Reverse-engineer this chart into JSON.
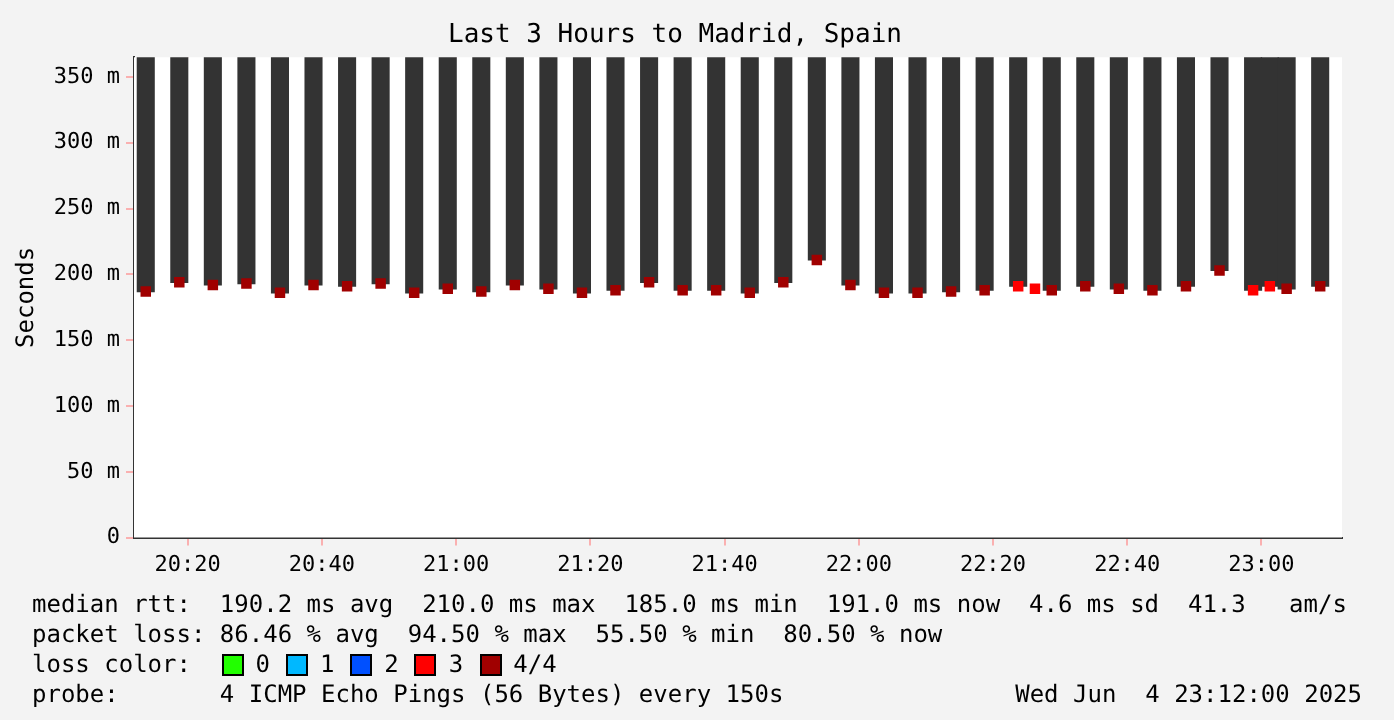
{
  "chart_data": {
    "type": "bar",
    "title": "Last 3 Hours to Madrid, Spain",
    "ylabel": "Seconds",
    "legend_title": "loss color:",
    "legend": "bottom",
    "grid": true,
    "xlim": [
      20.2,
      23.2
    ],
    "xticks": [
      {
        "value": 20.3333,
        "label": "20:20"
      },
      {
        "value": 20.6667,
        "label": "20:40"
      },
      {
        "value": 21,
        "label": "21:00"
      },
      {
        "value": 21.3333,
        "label": "21:20"
      },
      {
        "value": 21.6667,
        "label": "21:40"
      },
      {
        "value": 22,
        "label": "22:00"
      },
      {
        "value": 22.3333,
        "label": "22:20"
      },
      {
        "value": 22.6667,
        "label": "22:40"
      },
      {
        "value": 23,
        "label": "23:00"
      }
    ],
    "ylim": [
      0,
      365
    ],
    "yticks": [
      0,
      {
        "value": 50,
        "label": "50 m"
      },
      {
        "value": 100,
        "label": "100 m"
      },
      {
        "value": 150,
        "label": "150 m"
      },
      {
        "value": 200,
        "label": "200 m"
      },
      {
        "value": 250,
        "label": "250 m"
      },
      {
        "value": 300,
        "label": "300 m"
      },
      {
        "value": 350,
        "label": "350 m"
      }
    ],
    "series": [
      {
        "color": "#333333",
        "x": [
          20.2292,
          20.3125,
          20.3958,
          20.4792,
          20.5625,
          20.6458,
          20.7292,
          20.8125,
          20.8958,
          20.9792,
          21.0625,
          21.1458,
          21.2292,
          21.3125,
          21.3958,
          21.4792,
          21.5625,
          21.6458,
          21.7292,
          21.8125,
          21.8958,
          21.9792,
          22.0625,
          22.1458,
          22.2292,
          22.3125,
          22.3958,
          22.4792,
          22.5625,
          22.6458,
          22.7292,
          22.8125,
          22.8958,
          22.9792,
          23.0208,
          23.0625,
          23.1458
        ],
        "base": [
          187,
          194,
          192,
          193,
          186,
          192,
          191,
          193,
          186,
          189,
          187,
          192,
          189,
          186,
          188,
          194,
          188,
          188,
          186,
          194,
          211,
          192,
          186,
          186,
          187,
          188,
          191,
          188,
          191,
          189,
          188,
          191,
          203,
          188,
          191,
          189,
          191
        ],
        "values": [
          178,
          171,
          173,
          172,
          179,
          173,
          174,
          172,
          179,
          176,
          178,
          173,
          176,
          179,
          177,
          171,
          177,
          177,
          179,
          171,
          154,
          173,
          179,
          179,
          178,
          177,
          174,
          177,
          174,
          176,
          177,
          174,
          162,
          177,
          174,
          176,
          174
        ]
      },
      {
        "type": "scatter",
        "name": "0",
        "color": "#22ff00",
        "marker": "square"
      },
      {
        "type": "scatter",
        "name": "1",
        "color": "#00b8ff",
        "marker": "square"
      },
      {
        "type": "scatter",
        "name": "2",
        "color": "#0050ff",
        "marker": "square"
      },
      {
        "type": "scatter",
        "name": "3",
        "color": "#ff0000",
        "marker": "square",
        "x": [
          22.3958,
          22.4375,
          22.9792,
          23.0208
        ],
        "values": [
          191,
          189,
          188,
          191
        ]
      },
      {
        "type": "scatter",
        "name": "4/4",
        "color": "#a00000",
        "marker": "square",
        "x": [
          20.2292,
          20.3125,
          20.3958,
          20.4792,
          20.5625,
          20.6458,
          20.7292,
          20.8125,
          20.8958,
          20.9792,
          21.0625,
          21.1458,
          21.2292,
          21.3125,
          21.3958,
          21.4792,
          21.5625,
          21.6458,
          21.7292,
          21.8125,
          21.8958,
          21.9792,
          22.0625,
          22.1458,
          22.2292,
          22.3125,
          22.4792,
          22.5625,
          22.6458,
          22.7292,
          22.8125,
          22.8958,
          23.0625,
          23.1458
        ],
        "values": [
          187,
          194,
          192,
          193,
          186,
          192,
          191,
          193,
          186,
          189,
          187,
          192,
          189,
          186,
          188,
          194,
          188,
          188,
          186,
          194,
          211,
          192,
          186,
          186,
          187,
          188,
          188,
          191,
          189,
          188,
          191,
          203,
          189,
          191
        ]
      }
    ],
    "annotations": [
      "median rtt:  190.2 ms avg  210.0 ms max  185.0 ms min  191.0 ms now  4.6 ms sd  41.3   am/s",
      "packet loss: 86.46 % avg  94.50 % max  55.50 % min  80.50 % now",
      "probe:       4 ICMP Echo Pings (56 Bytes) every 150s",
      "Wed Jun  4 23:12:00 2025"
    ]
  }
}
